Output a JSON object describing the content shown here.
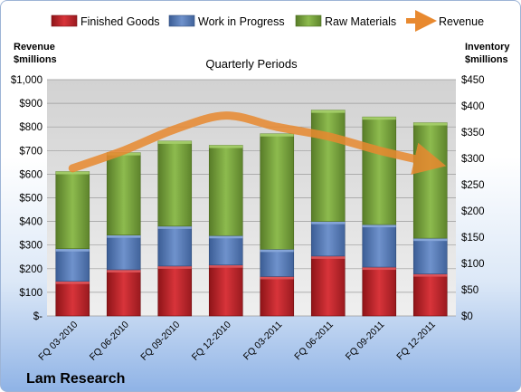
{
  "chart_data": {
    "type": "bar",
    "stacked": true,
    "title": "",
    "subtitle": "Quarterly Periods",
    "company": "Lam Research",
    "categories": [
      "FQ 03-2010",
      "FQ 06-2010",
      "FQ 09-2010",
      "FQ 12-2010",
      "FQ 03-2011",
      "FQ 06-2011",
      "FQ 09-2011",
      "FQ 12-2011"
    ],
    "series": [
      {
        "name": "Finished Goods",
        "axis": "right",
        "color": "#c0262c",
        "values": [
          66,
          88,
          95,
          97,
          75,
          114,
          93,
          80
        ]
      },
      {
        "name": "Work in Progress",
        "axis": "right",
        "color": "#5579b3",
        "values": [
          62,
          66,
          76,
          56,
          52,
          66,
          81,
          68
        ]
      },
      {
        "name": "Raw Materials",
        "axis": "right",
        "color": "#76a13a",
        "values": [
          147,
          157,
          162,
          172,
          220,
          212,
          205,
          220
        ]
      }
    ],
    "trend": {
      "name": "Revenue",
      "axis": "left",
      "color": "#e8892f",
      "values": [
        625,
        700,
        790,
        848,
        800,
        760,
        700,
        650
      ]
    },
    "left_axis": {
      "label_line1": "Revenue",
      "label_line2": "$millions",
      "ylim": [
        0,
        1000
      ],
      "ticks": [
        "$-",
        "$100",
        "$200",
        "$300",
        "$400",
        "$500",
        "$600",
        "$700",
        "$800",
        "$900",
        "$1,000"
      ]
    },
    "right_axis": {
      "label_line1": "Inventory",
      "label_line2": "$millions",
      "ylim": [
        0,
        450
      ],
      "ticks": [
        "$0",
        "$50",
        "$100",
        "$150",
        "$200",
        "$250",
        "$300",
        "$350",
        "$400",
        "$450"
      ]
    },
    "grid": true,
    "legend_position": "top"
  }
}
